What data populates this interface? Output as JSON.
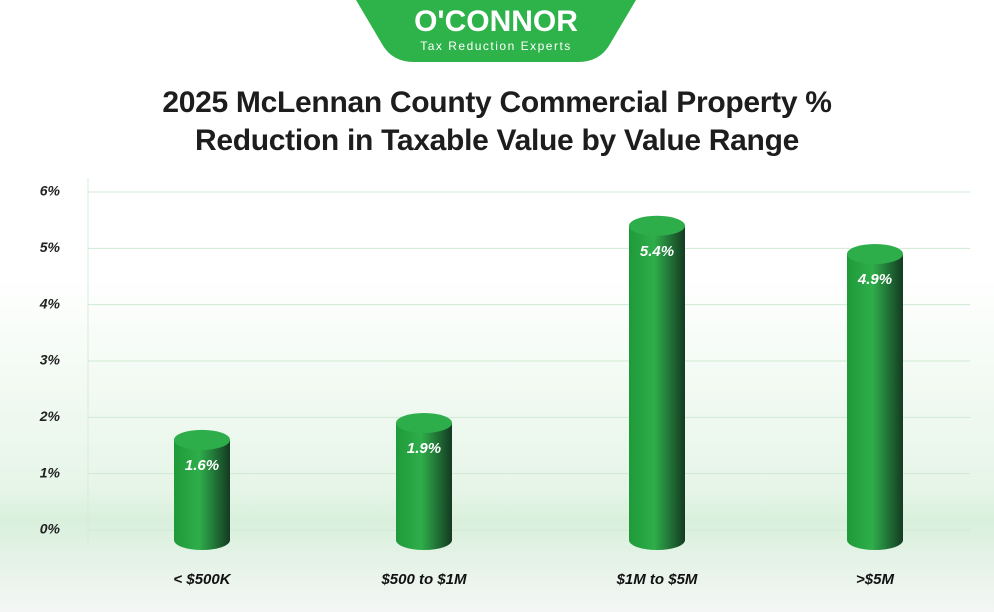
{
  "logo": {
    "name": "O'CONNOR",
    "tagline": "Tax Reduction Experts"
  },
  "chart_data": {
    "type": "bar",
    "title": "2025 McLennan County Commercial Property % Reduction in Taxable Value by Value Range",
    "categories": [
      "< $500K",
      "$500 to $1M",
      "$1M to $5M",
      ">$5M"
    ],
    "values": [
      1.6,
      1.9,
      5.4,
      4.9
    ],
    "value_labels": [
      "1.6%",
      "1.9%",
      "5.4%",
      "4.9%"
    ],
    "color": "#2eae4a",
    "ylim": [
      0,
      6
    ],
    "yticks": [
      {
        "value": 0,
        "label": "0%"
      },
      {
        "value": 1,
        "label": "1%"
      },
      {
        "value": 2,
        "label": "2%"
      },
      {
        "value": 3,
        "label": "3%"
      },
      {
        "value": 4,
        "label": "4%"
      },
      {
        "value": 5,
        "label": "5%"
      },
      {
        "value": 6,
        "label": "6%"
      }
    ],
    "grid": true
  }
}
